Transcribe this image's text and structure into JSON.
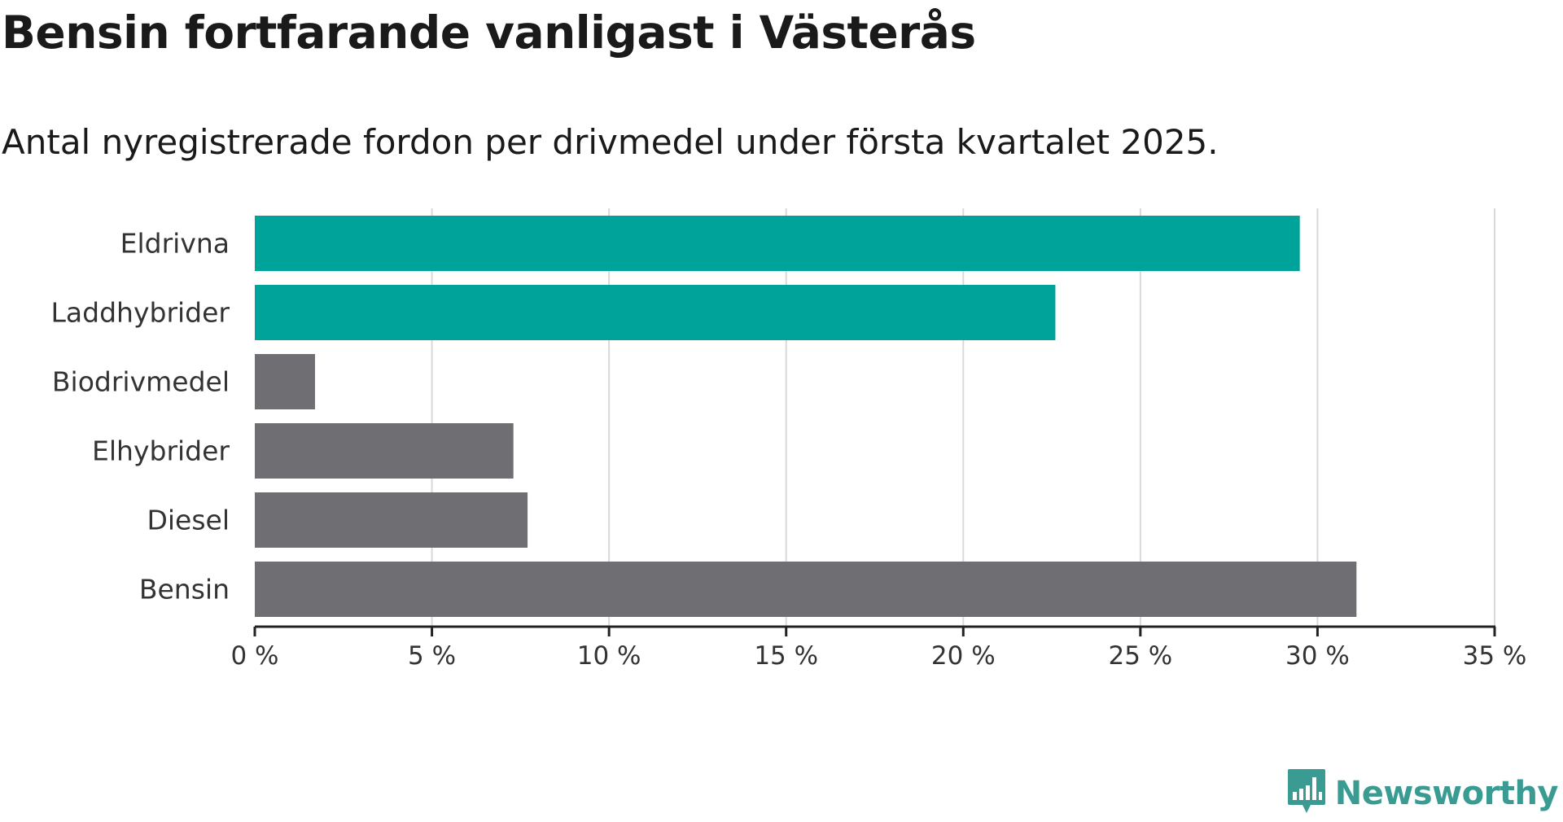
{
  "header": {
    "title": "Bensin fortfarande vanligast i Västerås",
    "subtitle": "Antal nyregistrerade fordon per drivmedel under första kvartalet 2025."
  },
  "brand": {
    "name": "Newsworthy",
    "icon": "newsworthy-logo-icon",
    "color": "#3a9b93"
  },
  "colors": {
    "highlight": "#00a39a",
    "neutral": "#6e6e73",
    "grid": "#d9d9d9",
    "axis": "#222222",
    "label": "#333333"
  },
  "chart_data": {
    "type": "bar",
    "orientation": "horizontal",
    "categories": [
      "Eldrivna",
      "Laddhybrider",
      "Biodrivmedel",
      "Elhybrider",
      "Diesel",
      "Bensin"
    ],
    "values": [
      29.5,
      22.6,
      1.7,
      7.3,
      7.7,
      31.1
    ],
    "highlighted": [
      true,
      true,
      false,
      false,
      false,
      false
    ],
    "xlim": [
      0,
      35
    ],
    "xticks": [
      0,
      5,
      10,
      15,
      20,
      25,
      30,
      35
    ],
    "tick_labels": [
      "0 %",
      "5 %",
      "10 %",
      "15 %",
      "20 %",
      "25 %",
      "30 %",
      "35 %"
    ],
    "grid": true,
    "xlabel": "",
    "ylabel": "",
    "unit": "%"
  }
}
